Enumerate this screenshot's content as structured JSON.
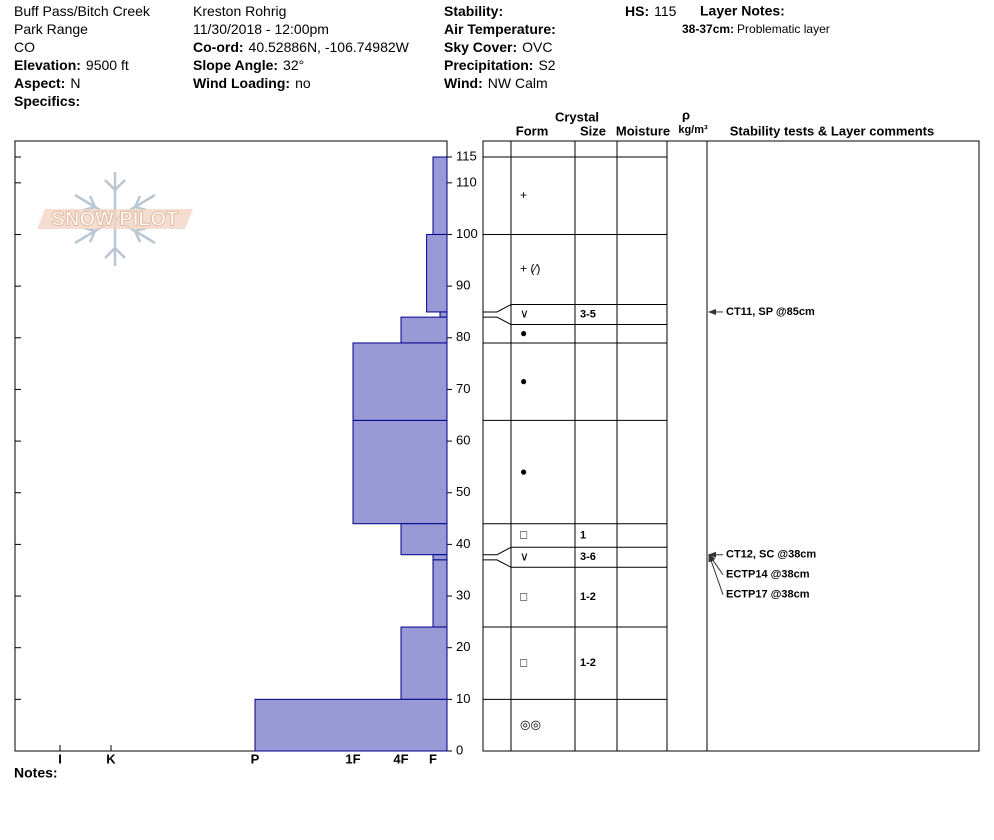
{
  "header": {
    "col1": [
      {
        "text": "Buff Pass/Bitch Creek"
      },
      {
        "text": "Park Range"
      },
      {
        "text": "CO"
      },
      {
        "label": "Elevation:",
        "value": "9500 ft"
      },
      {
        "label": "Aspect:",
        "value": "N"
      },
      {
        "label": "Specifics:"
      }
    ],
    "col2": [
      {
        "text": "Kreston Rohrig"
      },
      {
        "text": "11/30/2018 - 12:00pm"
      },
      {
        "label": "Co-ord:",
        "value": "40.52886N, -106.74982W"
      },
      {
        "label": "Slope Angle:",
        "value": "32°"
      },
      {
        "label": "Wind Loading:",
        "value": "no"
      }
    ],
    "col3": [
      {
        "label": "Stability:"
      },
      {
        "label": "Air Temperature:"
      },
      {
        "label": "Sky Cover:",
        "value": "OVC"
      },
      {
        "label": "Precipitation:",
        "value": "S2"
      },
      {
        "label": "Wind:",
        "value": "NW Calm"
      }
    ],
    "hs": {
      "label": "HS:",
      "value": 115
    },
    "layer_notes": {
      "title": "Layer Notes:",
      "items": [
        {
          "label": "38-37cm:",
          "value": "Problematic layer"
        }
      ]
    }
  },
  "notes": "Notes:",
  "chart_data": {
    "type": "profile",
    "logo": "SNOW PILOT",
    "color": "#9999d6",
    "ylim": [
      0,
      115
    ],
    "yticks": [
      0,
      10,
      20,
      30,
      40,
      50,
      60,
      70,
      80,
      90,
      100,
      110,
      115
    ],
    "xlim": [
      0,
      6
    ],
    "xticks": [
      {
        "value": 6,
        "label": "I"
      },
      {
        "value": 5,
        "label": "K"
      },
      {
        "value": 4,
        "label": "P"
      },
      {
        "value": 3,
        "label": "1F"
      },
      {
        "value": 2,
        "label": "4F"
      },
      {
        "value": 1,
        "label": "F"
      }
    ],
    "columns": {
      "crystal": "Crystal",
      "form": "Form",
      "size": "Size",
      "moisture": "Moisture",
      "density": "ρ",
      "density_unit": "kg/m³",
      "comments": "Stability tests & Layer comments"
    },
    "layers": [
      {
        "bottom": 100,
        "top": 115,
        "hardness": 1,
        "form": "+"
      },
      {
        "bottom": 85,
        "top": 100,
        "hardness": 1.2,
        "form": "+ (⁄)"
      },
      {
        "bottom": 84,
        "top": 85,
        "hardness": 0.5,
        "form": "∨",
        "size": "3-5"
      },
      {
        "bottom": 79,
        "top": 84,
        "hardness": 2,
        "form": "●"
      },
      {
        "bottom": 64,
        "top": 79,
        "hardness": 3,
        "form": "●"
      },
      {
        "bottom": 44,
        "top": 64,
        "hardness": 3,
        "form": "●"
      },
      {
        "bottom": 38,
        "top": 44,
        "hardness": 2,
        "form": "□",
        "size": "1"
      },
      {
        "bottom": 37,
        "top": 38,
        "hardness": 1,
        "form": "∨",
        "size": "3-6"
      },
      {
        "bottom": 24,
        "top": 37,
        "hardness": 1,
        "form": "□",
        "size": "1-2"
      },
      {
        "bottom": 10,
        "top": 24,
        "hardness": 2,
        "form": "□",
        "size": "1-2"
      },
      {
        "bottom": 0,
        "top": 10,
        "hardness": 4,
        "form": "◎◎"
      }
    ],
    "tests": [
      {
        "height": 85,
        "text": "CT11, SP @85cm"
      },
      {
        "height": 38,
        "text": "CT12, SC @38cm"
      },
      {
        "height": 38,
        "text": "ECTP14 @38cm"
      },
      {
        "height": 38,
        "text": "ECTP17 @38cm"
      }
    ]
  }
}
